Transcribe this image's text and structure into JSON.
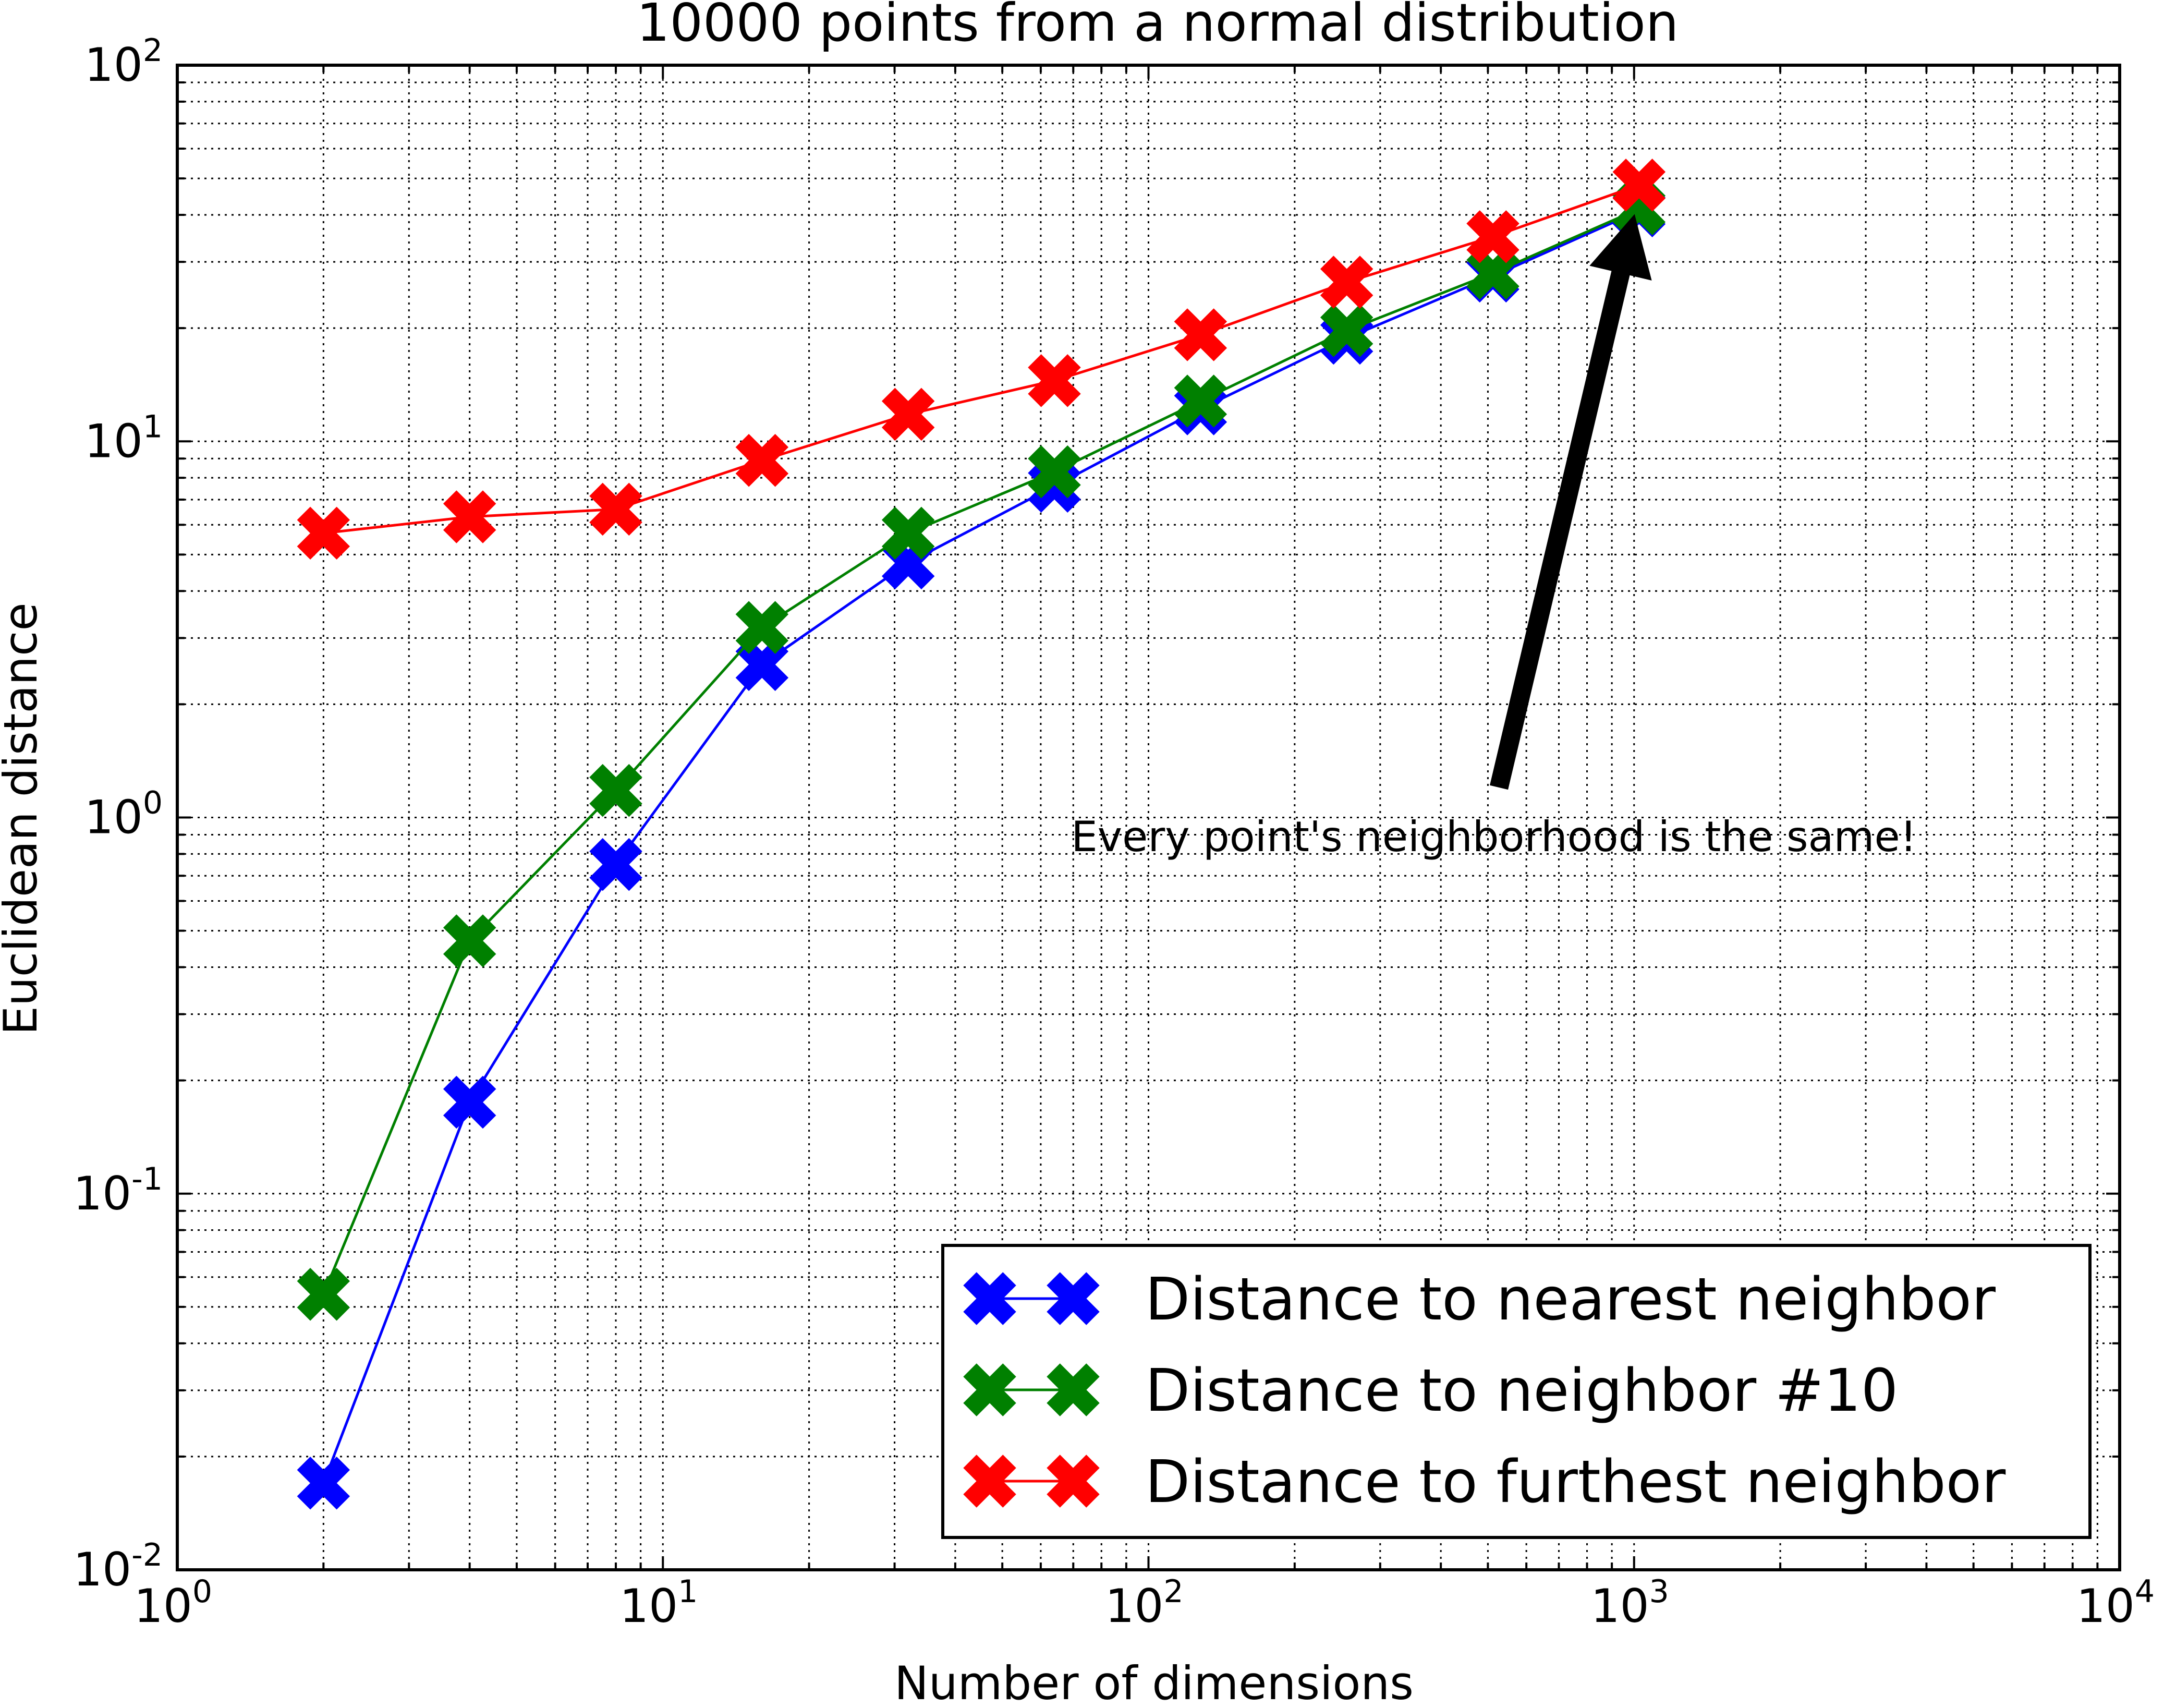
{
  "chart_data": {
    "type": "line",
    "title": "10000 points from a normal distribution",
    "xlabel": "Number of dimensions",
    "ylabel": "Euclidean distance",
    "xscale": "log",
    "yscale": "log",
    "xlim": [
      1,
      10000
    ],
    "ylim": [
      0.01,
      100
    ],
    "grid": true,
    "legend_position": "bottom-right",
    "x_ticks": [
      {
        "base": "10",
        "exp": "0"
      },
      {
        "base": "10",
        "exp": "1"
      },
      {
        "base": "10",
        "exp": "2"
      },
      {
        "base": "10",
        "exp": "3"
      },
      {
        "base": "10",
        "exp": "4"
      }
    ],
    "y_ticks": [
      {
        "base": "10",
        "exp": "-2"
      },
      {
        "base": "10",
        "exp": "-1"
      },
      {
        "base": "10",
        "exp": "0"
      },
      {
        "base": "10",
        "exp": "1"
      },
      {
        "base": "10",
        "exp": "2"
      }
    ],
    "x": [
      2,
      4,
      8,
      16,
      32,
      64,
      128,
      256,
      512,
      1024
    ],
    "series": [
      {
        "name": "Distance to nearest neighbor",
        "color": "#0000ff",
        "values": [
          0.017,
          0.175,
          0.75,
          2.55,
          4.75,
          7.6,
          12.2,
          18.8,
          27.5,
          41.0
        ]
      },
      {
        "name": "Distance to neighbor #10",
        "color": "#008000",
        "values": [
          0.054,
          0.47,
          1.18,
          3.2,
          5.7,
          8.3,
          12.8,
          19.7,
          28.0,
          41.5
        ]
      },
      {
        "name": "Distance to furthest neighbor",
        "color": "#ff0000",
        "values": [
          5.7,
          6.3,
          6.6,
          8.9,
          11.8,
          14.5,
          19.2,
          26.5,
          35.0,
          48.0
        ]
      }
    ],
    "annotation": {
      "text": "Every point's neighborhood is the same!",
      "arrow_to": [
        1000,
        42
      ]
    }
  }
}
